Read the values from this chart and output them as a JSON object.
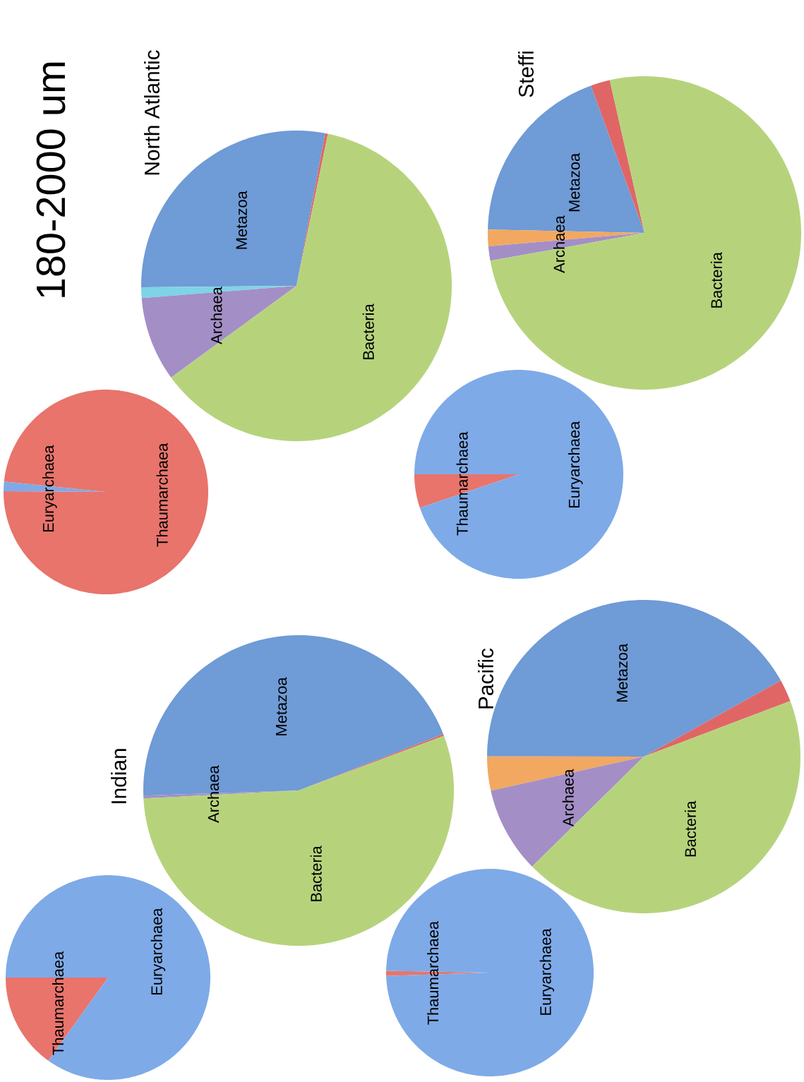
{
  "chart_data": [
    {
      "type": "pie",
      "title": "North Atlantic",
      "annotations": [
        "180-2000 um"
      ],
      "categories": [
        null,
        "Metazoa",
        null,
        "Archaea",
        "Bacteria"
      ],
      "values": [
        0.3,
        28.1,
        1.1,
        8.8,
        61.7
      ],
      "colors": [
        "#e06666",
        "#6f9bd6",
        "#7fd3e6",
        "#a38fc6",
        "#b6d37c"
      ]
    },
    {
      "type": "pie",
      "categories": [
        "Euryarchaea",
        "Thaumarchaea"
      ],
      "values": [
        1.5,
        98.5
      ],
      "colors": [
        "#7eaae8",
        "#e8746c"
      ]
    },
    {
      "type": "pie",
      "title": "Steffi",
      "categories": [
        null,
        "Metazoa",
        null,
        "Archaea",
        "Bacteria"
      ],
      "values": [
        2.0,
        19.1,
        1.7,
        1.5,
        75.7
      ],
      "colors": [
        "#e06666",
        "#6f9bd6",
        "#f2a860",
        "#a38fc6",
        "#b6d37c"
      ]
    },
    {
      "type": "pie",
      "categories": [
        "Thaumarchaea",
        "Euryarchaea"
      ],
      "values": [
        5.2,
        94.8
      ],
      "colors": [
        "#e8746c",
        "#7eaae8"
      ]
    },
    {
      "type": "pie",
      "title": "Indian",
      "categories": [
        null,
        "Metazoa",
        "Archaea",
        "Bacteria"
      ],
      "values": [
        0.2,
        44.6,
        0.3,
        54.9
      ],
      "colors": [
        "#e06666",
        "#6f9bd6",
        "#a38fc6",
        "#b6d37c"
      ]
    },
    {
      "type": "pie",
      "categories": [
        "Thaumarchaea",
        "Euryarchaea"
      ],
      "values": [
        15.1,
        84.9
      ],
      "colors": [
        "#e8746c",
        "#7eaae8"
      ]
    },
    {
      "type": "pie",
      "title": "Pacific",
      "categories": [
        null,
        "Metazoa",
        null,
        "Archaea",
        "Bacteria"
      ],
      "values": [
        2.3,
        41.9,
        3.5,
        8.9,
        43.4
      ],
      "colors": [
        "#e06666",
        "#6f9bd6",
        "#f2a860",
        "#a38fc6",
        "#b6d37c"
      ]
    },
    {
      "type": "pie",
      "categories": [
        "Thaumarchaea",
        "Euryarchaea"
      ],
      "values": [
        0.8,
        99.2
      ],
      "colors": [
        "#e8746c",
        "#7eaae8"
      ]
    }
  ]
}
